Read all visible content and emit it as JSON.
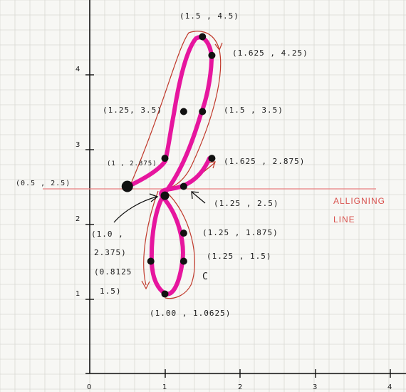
{
  "axes": {
    "x_ticks": [
      "0",
      "1",
      "2",
      "3",
      "4"
    ],
    "y_ticks": [
      "1",
      "2",
      "3",
      "4"
    ]
  },
  "aligning_line": {
    "label_line1": "ALLIGNING",
    "label_line2": "LINE",
    "y": 2.5
  },
  "colors": {
    "curve": "#e6169e",
    "guide": "#c0392b",
    "point": "#111111",
    "grid": "#d9d9d3",
    "axis": "#111111",
    "aligning": "#e88080"
  },
  "points": [
    {
      "x": 1.5,
      "y": 4.5
    },
    {
      "x": 1.625,
      "y": 4.25
    },
    {
      "x": 1.5,
      "y": 3.5
    },
    {
      "x": 1.25,
      "y": 3.5
    },
    {
      "x": 1.0,
      "y": 2.875
    },
    {
      "x": 1.625,
      "y": 2.875
    },
    {
      "x": 0.5,
      "y": 2.5
    },
    {
      "x": 1.25,
      "y": 2.5
    },
    {
      "x": 1.0,
      "y": 2.375
    },
    {
      "x": 1.25,
      "y": 1.875
    },
    {
      "x": 1.25,
      "y": 1.5
    },
    {
      "x": 0.8125,
      "y": 1.5
    },
    {
      "x": 1.0,
      "y": 1.0625
    }
  ],
  "annotations": [
    {
      "text": "(1.5 , 4.5)"
    },
    {
      "text": "(1.625 , 4.25)"
    },
    {
      "text": "(1.25, 3.5)"
    },
    {
      "text": "(1.5 , 3.5)"
    },
    {
      "text": "(1 , 2.875)"
    },
    {
      "text": "(1.625 , 2.875)"
    },
    {
      "text": "(0.5 , 2.5)"
    },
    {
      "text": "(1.25 , 2.5)"
    },
    {
      "text": "(1.0 ,"
    },
    {
      "text": "2.375)"
    },
    {
      "text": "(1.25 , 1.875)"
    },
    {
      "text": "(1.25 , 1.5)"
    },
    {
      "text": "(0.8125"
    },
    {
      "text": "1.5)"
    },
    {
      "text": "(1.00 , 1.0625)"
    },
    {
      "text": "C"
    }
  ]
}
